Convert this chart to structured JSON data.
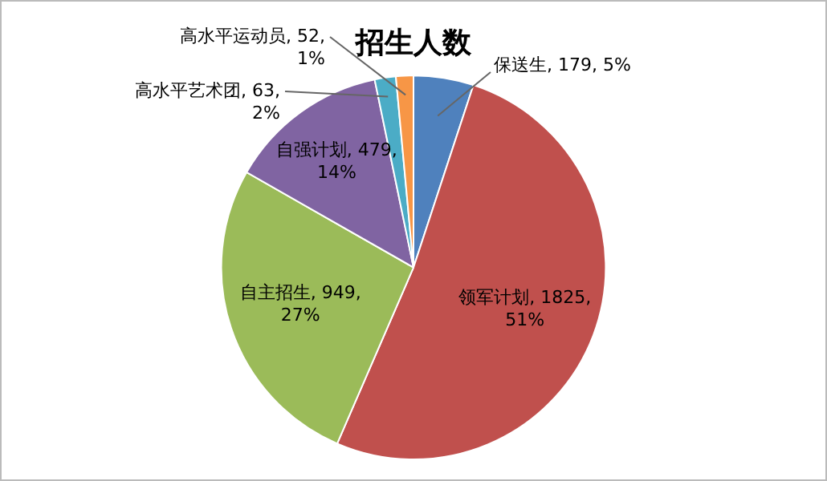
{
  "chart_data": {
    "type": "pie",
    "title": "招生人数",
    "categories": [
      "保送生",
      "领军计划",
      "自主招生",
      "自强计划",
      "高水平艺术团",
      "高水平运动员"
    ],
    "values": [
      179,
      1825,
      949,
      479,
      63,
      52
    ],
    "value_labels": [
      "179, 5%",
      "1825, 51%",
      "949, 27%",
      "479, 14%",
      "63, 2%",
      "52, 1%"
    ],
    "colors": [
      "#4f81bd",
      "#c0504d",
      "#9bbb59",
      "#8064a2",
      "#4bacc6",
      "#f79646"
    ],
    "legend": false
  }
}
